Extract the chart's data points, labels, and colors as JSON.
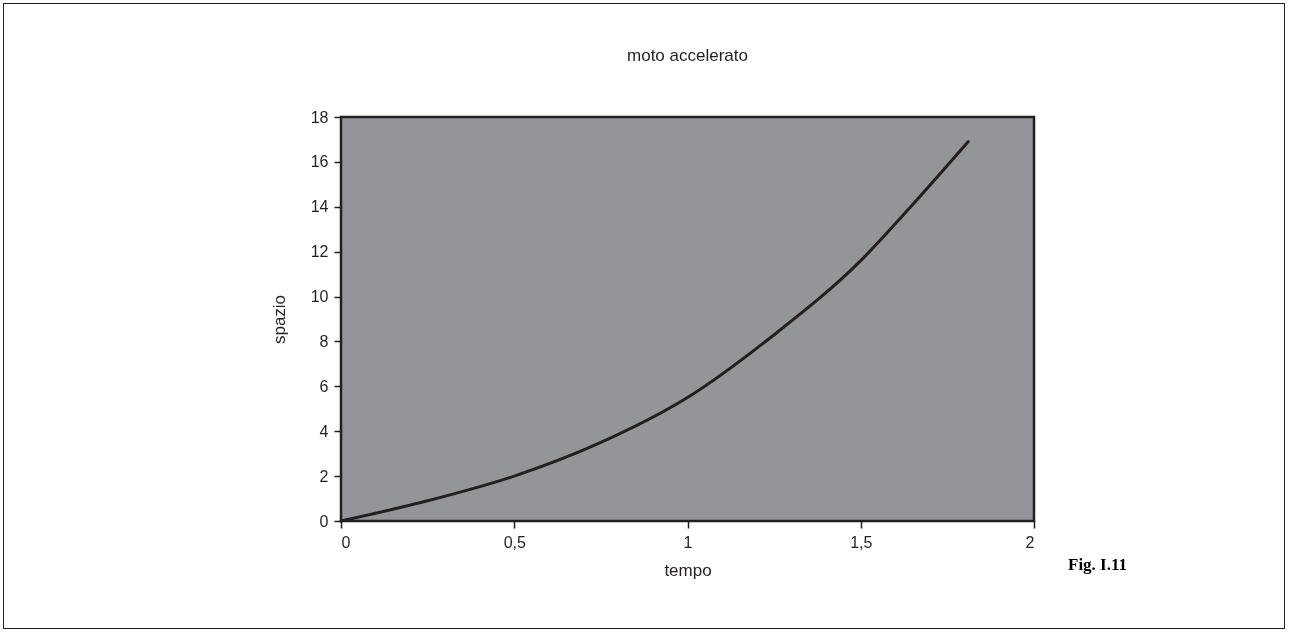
{
  "chart_data": {
    "type": "line",
    "title": "moto accelerato",
    "xlabel": "tempo",
    "ylabel": "spazio",
    "annotations": [
      "Fig. I.11"
    ],
    "x": [
      0,
      0.25,
      0.5,
      0.75,
      1,
      1.25,
      1.5,
      1.65,
      1.81
    ],
    "series": [
      {
        "color": "#231f20",
        "values": [
          0,
          0.9,
          2.0,
          3.5,
          5.5,
          8.3,
          11.6,
          14.1,
          16.9
        ]
      }
    ],
    "xlim": [
      0,
      2
    ],
    "xticks": [
      0,
      {
        "value": 0.5,
        "label": "0,5"
      },
      1,
      {
        "value": 1.5,
        "label": "1,5"
      },
      2
    ],
    "ylim": [
      0,
      18
    ],
    "yticks": [
      0,
      2,
      4,
      6,
      8,
      10,
      12,
      14,
      16,
      18
    ],
    "grid": false,
    "marker": "none",
    "line_style": "solid"
  }
}
